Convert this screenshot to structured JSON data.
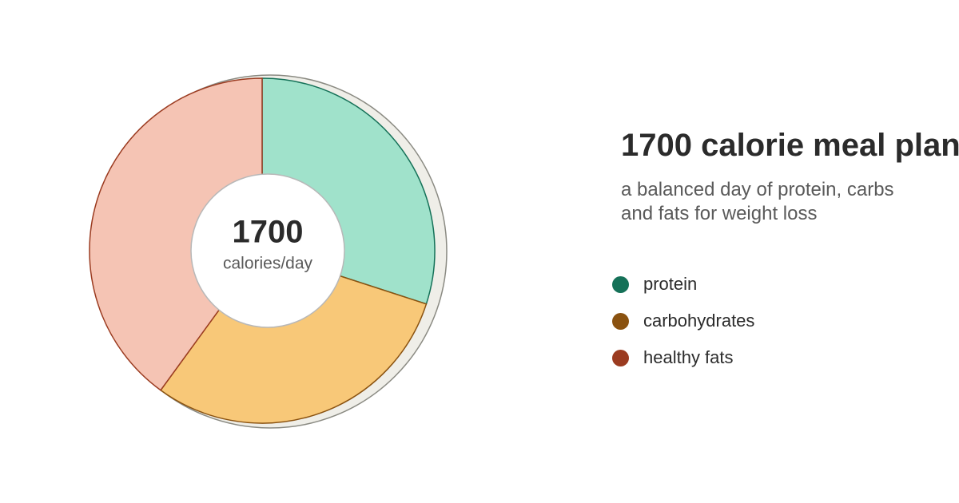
{
  "chart_data": {
    "type": "donut",
    "title": "1700 calorie meal plan",
    "subtitle": "a balanced day of protein, carbs and fats for weight loss",
    "center_value": 1700,
    "center_label": "calories/day",
    "categories": [
      "protein",
      "carbohydrates",
      "healthy fats"
    ],
    "values": [
      30,
      30,
      40
    ],
    "colors": [
      "#157158",
      "#8a5210",
      "#9b3b20"
    ],
    "fill_colors": [
      "#a0e2cb",
      "#f8c878",
      "#f5c4b4"
    ]
  }
}
